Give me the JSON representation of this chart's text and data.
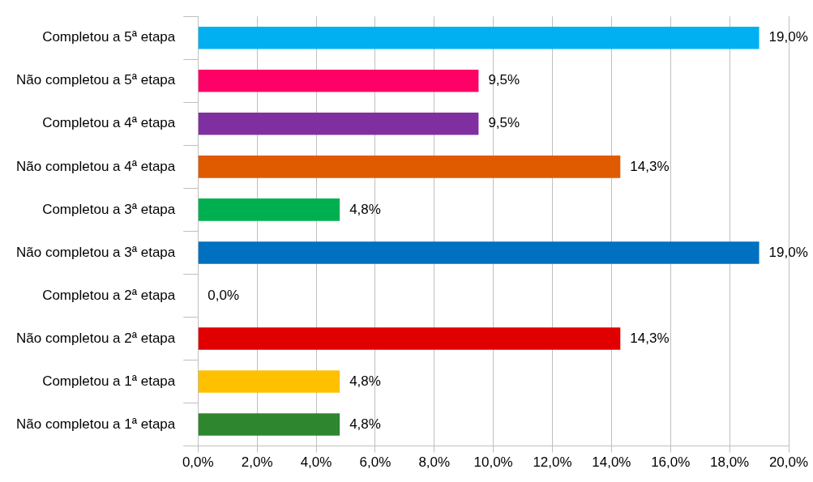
{
  "chart_data": {
    "type": "bar",
    "orientation": "horizontal",
    "categories": [
      "Completou a 5ª etapa",
      "Não completou a 5ª etapa",
      "Completou a 4ª etapa",
      "Não completou a 4ª etapa",
      "Completou a 3ª etapa",
      "Não completou a 3ª etapa",
      "Completou a 2ª etapa",
      "Não completou a 2ª etapa",
      "Completou a 1ª etapa",
      "Não completou a 1ª etapa"
    ],
    "values": [
      19.0,
      9.5,
      9.5,
      14.3,
      4.8,
      19.0,
      0.0,
      14.3,
      4.8,
      4.8
    ],
    "colors": [
      "#00b0f0",
      "#ff0066",
      "#7f2fa0",
      "#e05a00",
      "#00b050",
      "#0070c0",
      "#7f7f7f",
      "#e00000",
      "#ffc000",
      "#2e862e"
    ],
    "value_labels": [
      "19,0%",
      "9,5%",
      "9,5%",
      "14,3%",
      "4,8%",
      "19,0%",
      "0,0%",
      "14,3%",
      "4,8%",
      "4,8%"
    ],
    "xlim": [
      0,
      20
    ],
    "xticks": [
      {
        "value": 0,
        "label": "0,0%"
      },
      {
        "value": 2,
        "label": "2,0%"
      },
      {
        "value": 4,
        "label": "4,0%"
      },
      {
        "value": 6,
        "label": "6,0%"
      },
      {
        "value": 8,
        "label": "8,0%"
      },
      {
        "value": 10,
        "label": "10,0%"
      },
      {
        "value": 12,
        "label": "12,0%"
      },
      {
        "value": 14,
        "label": "14,0%"
      },
      {
        "value": 16,
        "label": "16,0%"
      },
      {
        "value": 18,
        "label": "18,0%"
      },
      {
        "value": 20,
        "label": "20,0%"
      }
    ],
    "grid": "x"
  }
}
